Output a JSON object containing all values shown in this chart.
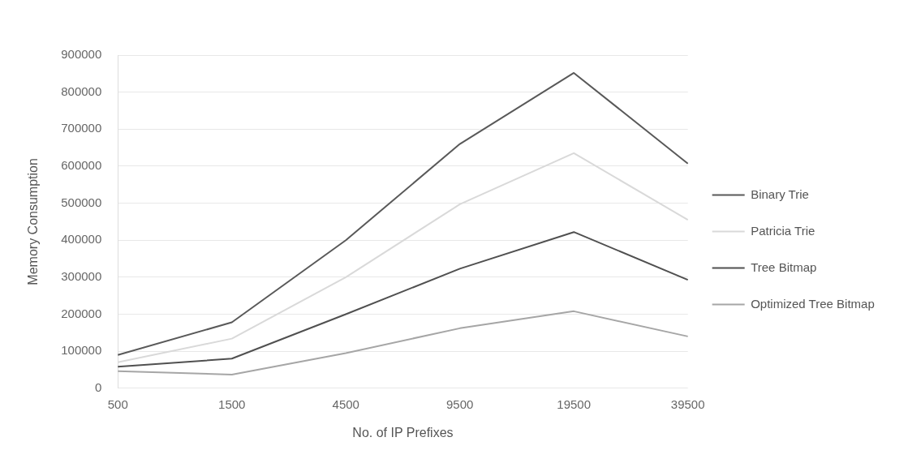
{
  "chart_data": {
    "type": "line",
    "xlabel": "No. of IP Prefixes",
    "ylabel": "Memory Consumption",
    "categories": [
      "500",
      "1500",
      "4500",
      "9500",
      "19500",
      "39500"
    ],
    "series": [
      {
        "name": "Binary Trie",
        "color": "#595959",
        "values": [
          90000,
          178000,
          400000,
          660000,
          852000,
          607000
        ]
      },
      {
        "name": "Patricia Trie",
        "color": "#d9d9d9",
        "values": [
          70000,
          134000,
          300000,
          497000,
          635000,
          455000
        ]
      },
      {
        "name": "Tree Bitmap",
        "color": "#505050",
        "values": [
          58000,
          80000,
          200000,
          323000,
          422000,
          293000
        ]
      },
      {
        "name": "Optimized Tree Bitmap",
        "color": "#a6a6a6",
        "values": [
          46000,
          37000,
          95000,
          162000,
          208000,
          140000
        ]
      }
    ],
    "ylim": [
      0,
      900000
    ],
    "yticks": [
      0,
      100000,
      200000,
      300000,
      400000,
      500000,
      600000,
      700000,
      800000,
      900000
    ],
    "grid": "y",
    "legend": "right",
    "marker": "none",
    "line_style": "solid"
  }
}
